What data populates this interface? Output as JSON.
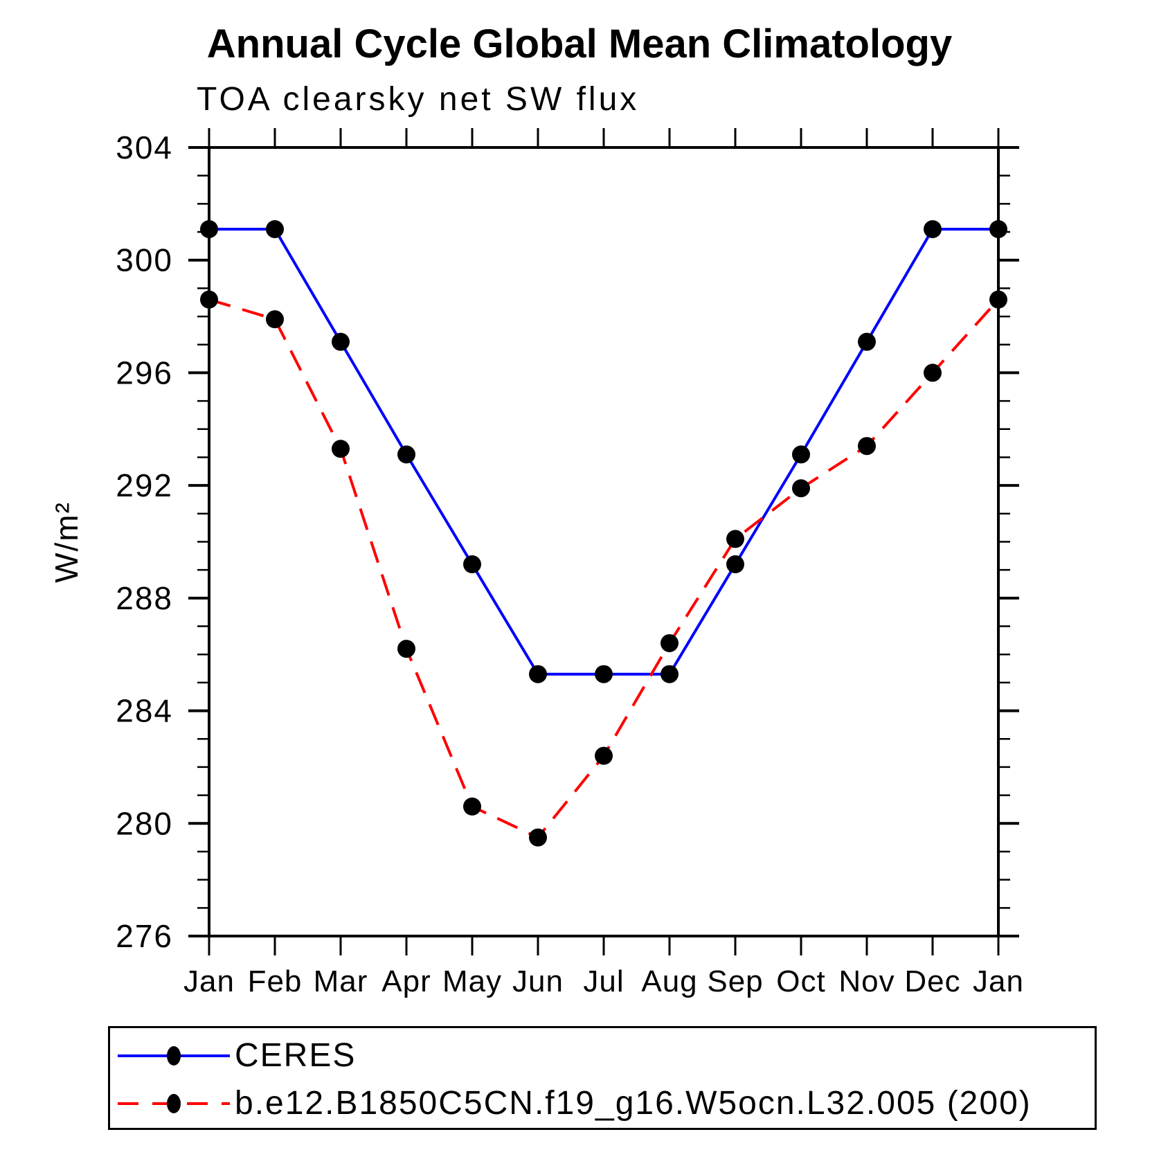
{
  "header": {
    "title": "Annual Cycle Global Mean Climatology",
    "subtitle": "TOA clearsky net SW flux"
  },
  "chart_data": {
    "type": "line",
    "title": "Annual Cycle Global Mean Climatology",
    "subtitle": "TOA clearsky net SW flux",
    "xlabel": "",
    "ylabel": "W/m²",
    "ylim": [
      276,
      304
    ],
    "yticks": [
      276,
      280,
      284,
      288,
      292,
      296,
      300,
      304
    ],
    "yminor_step": 1,
    "grid": false,
    "legend_position": "bottom",
    "categories": [
      "Jan",
      "Feb",
      "Mar",
      "Apr",
      "May",
      "Jun",
      "Jul",
      "Aug",
      "Sep",
      "Oct",
      "Nov",
      "Dec",
      "Jan"
    ],
    "series": [
      {
        "name": "CERES",
        "color": "#0000ff",
        "style": "solid",
        "marker": "filled-circle",
        "marker_color": "#000000",
        "values": [
          301.1,
          301.1,
          297.1,
          293.1,
          289.2,
          285.3,
          285.3,
          285.3,
          289.2,
          293.1,
          297.1,
          301.1,
          301.1
        ]
      },
      {
        "name": "b.e12.B1850C5CN.f19_g16.W5ocn.L32.005 (200)",
        "color": "#ff0000",
        "style": "dashed",
        "marker": "filled-circle",
        "marker_color": "#000000",
        "values": [
          298.6,
          297.9,
          293.3,
          286.2,
          280.6,
          279.5,
          282.4,
          286.4,
          290.1,
          291.9,
          293.4,
          296.0,
          298.6
        ]
      }
    ]
  }
}
